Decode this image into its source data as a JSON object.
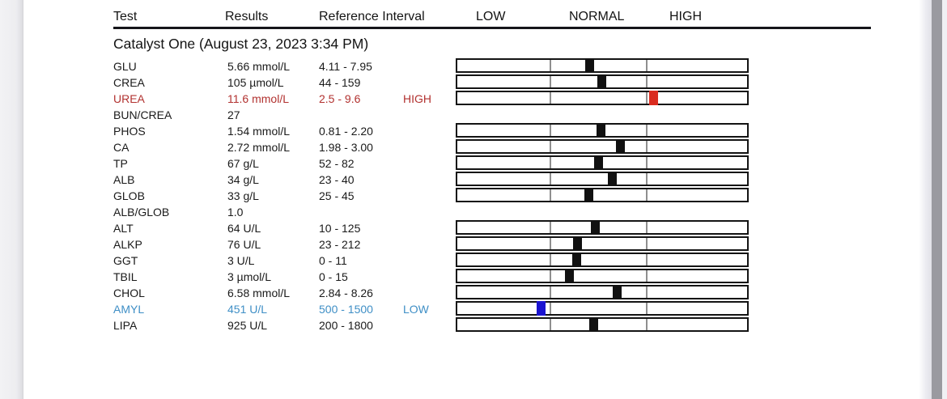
{
  "table_header": {
    "test": "Test",
    "results": "Results",
    "reference": "Reference Interval",
    "zone_low": "LOW",
    "zone_normal": "NORMAL",
    "zone_high": "HIGH"
  },
  "section": {
    "title": "Catalyst One (August 23, 2023 3:34 PM)"
  },
  "rows": [
    {
      "test": "GLU",
      "result": "5.66 mmol/L",
      "ref": "4.11 - 7.95",
      "flag": "",
      "state": "normal",
      "bar": true,
      "zone": "normal",
      "fraction": 0.404
    },
    {
      "test": "CREA",
      "result": "105 µmol/L",
      "ref": "44 - 159",
      "flag": "",
      "state": "normal",
      "bar": true,
      "zone": "normal",
      "fraction": 0.53
    },
    {
      "test": "UREA",
      "result": "11.6 mmol/L",
      "ref": "2.5 - 9.6",
      "flag": "HIGH",
      "state": "high",
      "bar": true,
      "zone": "high",
      "fraction": 0.07
    },
    {
      "test": "BUN/CREA",
      "result": "27",
      "ref": "",
      "flag": "",
      "state": "normal",
      "bar": false
    },
    {
      "test": "PHOS",
      "result": "1.54 mmol/L",
      "ref": "0.81 - 2.20",
      "flag": "",
      "state": "normal",
      "bar": true,
      "zone": "normal",
      "fraction": 0.525
    },
    {
      "test": "CA",
      "result": "2.72 mmol/L",
      "ref": "1.98 - 3.00",
      "flag": "",
      "state": "normal",
      "bar": true,
      "zone": "normal",
      "fraction": 0.725
    },
    {
      "test": "TP",
      "result": "67 g/L",
      "ref": "52 - 82",
      "flag": "",
      "state": "normal",
      "bar": true,
      "zone": "normal",
      "fraction": 0.5
    },
    {
      "test": "ALB",
      "result": "34 g/L",
      "ref": "23 - 40",
      "flag": "",
      "state": "normal",
      "bar": true,
      "zone": "normal",
      "fraction": 0.647
    },
    {
      "test": "GLOB",
      "result": "33 g/L",
      "ref": "25 - 45",
      "flag": "",
      "state": "normal",
      "bar": true,
      "zone": "normal",
      "fraction": 0.4
    },
    {
      "test": "ALB/GLOB",
      "result": "1.0",
      "ref": "",
      "flag": "",
      "state": "normal",
      "bar": false
    },
    {
      "test": "ALT",
      "result": "64 U/L",
      "ref": "10 - 125",
      "flag": "",
      "state": "normal",
      "bar": true,
      "zone": "normal",
      "fraction": 0.47
    },
    {
      "test": "ALKP",
      "result": "76 U/L",
      "ref": "23 - 212",
      "flag": "",
      "state": "normal",
      "bar": true,
      "zone": "normal",
      "fraction": 0.28
    },
    {
      "test": "GGT",
      "result": "3 U/L",
      "ref": "0 - 11",
      "flag": "",
      "state": "normal",
      "bar": true,
      "zone": "normal",
      "fraction": 0.273
    },
    {
      "test": "TBIL",
      "result": "3 µmol/L",
      "ref": "0 - 15",
      "flag": "",
      "state": "normal",
      "bar": true,
      "zone": "normal",
      "fraction": 0.2
    },
    {
      "test": "CHOL",
      "result": "6.58 mmol/L",
      "ref": "2.84 - 8.26",
      "flag": "",
      "state": "normal",
      "bar": true,
      "zone": "normal",
      "fraction": 0.69
    },
    {
      "test": "AMYL",
      "result": "451 U/L",
      "ref": "500 - 1500",
      "flag": "LOW",
      "state": "low",
      "bar": true,
      "zone": "low",
      "fraction": 0.9
    },
    {
      "test": "LIPA",
      "result": "925 U/L",
      "ref": "200 - 1800",
      "flag": "",
      "state": "normal",
      "bar": true,
      "zone": "normal",
      "fraction": 0.453
    }
  ],
  "colors": {
    "text_default": "#1a1a1a",
    "text_high": "#b23230",
    "text_low": "#3f8fc6",
    "marker_normal": "#111111",
    "marker_high": "#da2b1f",
    "marker_low": "#1b14d0",
    "bar_border": "#141414",
    "bar_divider": "#8f8f8f"
  }
}
